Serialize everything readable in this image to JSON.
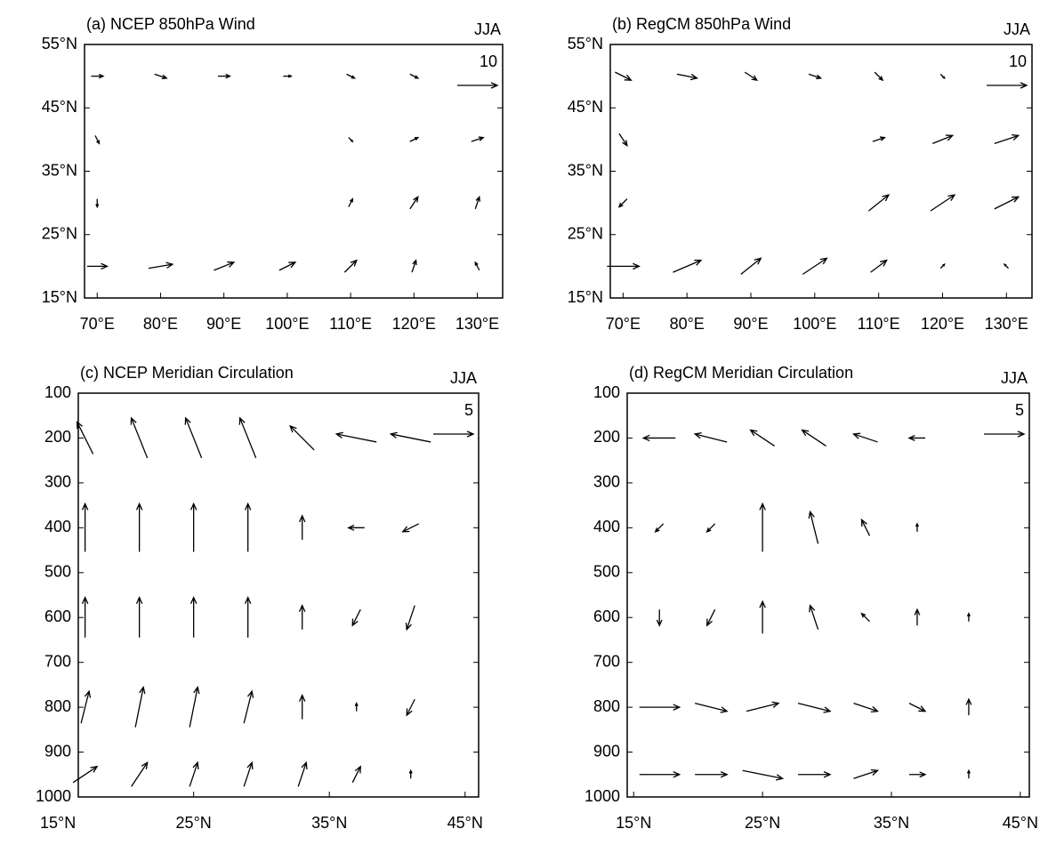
{
  "chart_data": [
    {
      "type": "vector",
      "title": "(a) NCEP 850hPa Wind",
      "season": "JJA",
      "ref_value": 10,
      "y_inverted": false,
      "xlim": [
        68,
        134
      ],
      "ylim": [
        15,
        55
      ],
      "xticks": [
        {
          "value": 70,
          "label": "70°E"
        },
        {
          "value": 80,
          "label": "80°E"
        },
        {
          "value": 90,
          "label": "90°E"
        },
        {
          "value": 100,
          "label": "100°E"
        },
        {
          "value": 110,
          "label": "110°E"
        },
        {
          "value": 120,
          "label": "120°E"
        },
        {
          "value": 130,
          "label": "130°E"
        }
      ],
      "yticks": [
        {
          "value": 15,
          "label": "15°N"
        },
        {
          "value": 25,
          "label": "25°N"
        },
        {
          "value": 35,
          "label": "35°N"
        },
        {
          "value": 45,
          "label": "45°N"
        },
        {
          "value": 55,
          "label": "55°N"
        }
      ],
      "vectors": {
        "x": [
          70,
          80,
          90,
          100,
          110,
          120,
          70,
          110,
          120,
          130,
          70,
          110,
          120,
          130,
          70,
          80,
          90,
          100,
          110,
          120,
          130
        ],
        "y": [
          50,
          50,
          50,
          50,
          50,
          50,
          40,
          40,
          40,
          40,
          30,
          30,
          30,
          30,
          20,
          20,
          20,
          20,
          20,
          20,
          20
        ],
        "u": [
          3,
          3,
          3,
          2,
          2,
          2,
          1,
          1,
          2,
          3,
          0,
          1,
          2,
          1,
          5,
          6,
          5,
          4,
          3,
          1,
          -1
        ],
        "v": [
          0,
          -1,
          0,
          0,
          -1,
          -1,
          -2,
          -1,
          1,
          1,
          -2,
          2,
          3,
          3,
          0,
          1,
          2,
          2,
          3,
          3,
          2
        ]
      }
    },
    {
      "type": "vector",
      "title": "(b) RegCM 850hPa Wind",
      "season": "JJA",
      "ref_value": 10,
      "y_inverted": false,
      "xlim": [
        68,
        134
      ],
      "ylim": [
        15,
        55
      ],
      "xticks": [
        {
          "value": 70,
          "label": "70°E"
        },
        {
          "value": 80,
          "label": "80°E"
        },
        {
          "value": 90,
          "label": "90°E"
        },
        {
          "value": 100,
          "label": "100°E"
        },
        {
          "value": 110,
          "label": "110°E"
        },
        {
          "value": 120,
          "label": "120°E"
        },
        {
          "value": 130,
          "label": "130°E"
        }
      ],
      "yticks": [
        {
          "value": 15,
          "label": "15°N"
        },
        {
          "value": 25,
          "label": "25°N"
        },
        {
          "value": 35,
          "label": "35°N"
        },
        {
          "value": 45,
          "label": "45°N"
        },
        {
          "value": 55,
          "label": "55°N"
        }
      ],
      "vectors": {
        "x": [
          70,
          80,
          90,
          100,
          110,
          120,
          70,
          110,
          120,
          130,
          70,
          110,
          120,
          130,
          70,
          80,
          90,
          100,
          110,
          120,
          130
        ],
        "y": [
          50,
          50,
          50,
          50,
          50,
          50,
          40,
          40,
          40,
          40,
          30,
          30,
          30,
          30,
          20,
          20,
          20,
          20,
          20,
          20,
          20
        ],
        "u": [
          4,
          5,
          3,
          3,
          2,
          1,
          2,
          3,
          5,
          6,
          -2,
          5,
          6,
          6,
          8,
          7,
          5,
          6,
          4,
          1,
          -1
        ],
        "v": [
          -2,
          -1,
          -2,
          -1,
          -2,
          -1,
          -3,
          1,
          2,
          2,
          -2,
          4,
          4,
          3,
          0,
          3,
          4,
          4,
          3,
          1,
          1
        ]
      }
    },
    {
      "type": "vector",
      "title": "(c) NCEP Meridian Circulation",
      "season": "JJA",
      "ref_value": 5,
      "y_inverted": true,
      "xlim": [
        16.5,
        46
      ],
      "ylim": [
        100,
        1000
      ],
      "xticks": [
        {
          "value": 15,
          "label": "15°N"
        },
        {
          "value": 25,
          "label": "25°N"
        },
        {
          "value": 35,
          "label": "35°N"
        },
        {
          "value": 45,
          "label": "45°N"
        }
      ],
      "yticks": [
        100,
        200,
        300,
        400,
        500,
        600,
        700,
        800,
        900,
        1000
      ],
      "vectors": {
        "x": [
          17,
          21,
          25,
          29,
          33,
          37,
          41,
          17,
          21,
          25,
          29,
          33,
          37,
          41,
          17,
          21,
          25,
          29,
          33,
          37,
          41,
          17,
          21,
          25,
          29,
          33,
          37,
          41,
          17,
          21,
          25,
          29,
          33,
          37,
          41
        ],
        "y": [
          200,
          200,
          200,
          200,
          200,
          200,
          200,
          400,
          400,
          400,
          400,
          400,
          400,
          400,
          600,
          600,
          600,
          600,
          600,
          600,
          600,
          800,
          800,
          800,
          800,
          800,
          800,
          800,
          950,
          950,
          950,
          950,
          950,
          950,
          950
        ],
        "u": [
          -2,
          -2,
          -2,
          -2,
          -3,
          -5,
          -5,
          0,
          0,
          0,
          0,
          0,
          -2,
          -2,
          0,
          0,
          0,
          0,
          0,
          -1,
          -1,
          1,
          1,
          1,
          1,
          0,
          0,
          -1,
          3,
          2,
          1,
          1,
          1,
          1,
          0
        ],
        "v": [
          4,
          5,
          5,
          5,
          3,
          1,
          1,
          6,
          6,
          6,
          6,
          3,
          0,
          -1,
          5,
          5,
          5,
          5,
          3,
          -2,
          -3,
          4,
          5,
          5,
          4,
          3,
          1,
          -2,
          2,
          3,
          3,
          3,
          3,
          2,
          1
        ]
      }
    },
    {
      "type": "vector",
      "title": "(d) RegCM Meridian Circulation",
      "season": "JJA",
      "ref_value": 5,
      "y_inverted": true,
      "xlim": [
        14.5,
        45.7
      ],
      "ylim": [
        100,
        1000
      ],
      "xticks": [
        {
          "value": 15,
          "label": "15°N"
        },
        {
          "value": 25,
          "label": "25°N"
        },
        {
          "value": 35,
          "label": "35°N"
        },
        {
          "value": 45,
          "label": "45°N"
        }
      ],
      "yticks": [
        100,
        200,
        300,
        400,
        500,
        600,
        700,
        800,
        900,
        1000
      ],
      "vectors": {
        "x": [
          17,
          21,
          25,
          29,
          33,
          37,
          41,
          17,
          21,
          25,
          29,
          33,
          37,
          41,
          17,
          21,
          25,
          29,
          33,
          37,
          41,
          17,
          21,
          25,
          29,
          33,
          37,
          41,
          17,
          21,
          25,
          29,
          33,
          37,
          41
        ],
        "y": [
          200,
          200,
          200,
          200,
          200,
          200,
          200,
          400,
          400,
          400,
          400,
          400,
          400,
          400,
          600,
          600,
          600,
          600,
          600,
          600,
          600,
          800,
          800,
          800,
          800,
          800,
          800,
          800,
          950,
          950,
          950,
          950,
          950,
          950,
          950
        ],
        "u": [
          -4,
          -4,
          -3,
          -3,
          -3,
          -2,
          0,
          -1,
          -1,
          0,
          -1,
          -1,
          0,
          0,
          0,
          -1,
          0,
          -1,
          -1,
          0,
          0,
          5,
          4,
          4,
          4,
          3,
          2,
          0,
          5,
          4,
          5,
          4,
          3,
          2,
          0
        ],
        "v": [
          0,
          1,
          2,
          2,
          1,
          0,
          0,
          -1,
          -1,
          6,
          4,
          2,
          1,
          0,
          -2,
          -2,
          4,
          3,
          1,
          2,
          1,
          0,
          -1,
          1,
          -1,
          -1,
          -1,
          2,
          0,
          0,
          -1,
          0,
          1,
          0,
          1
        ]
      }
    }
  ]
}
